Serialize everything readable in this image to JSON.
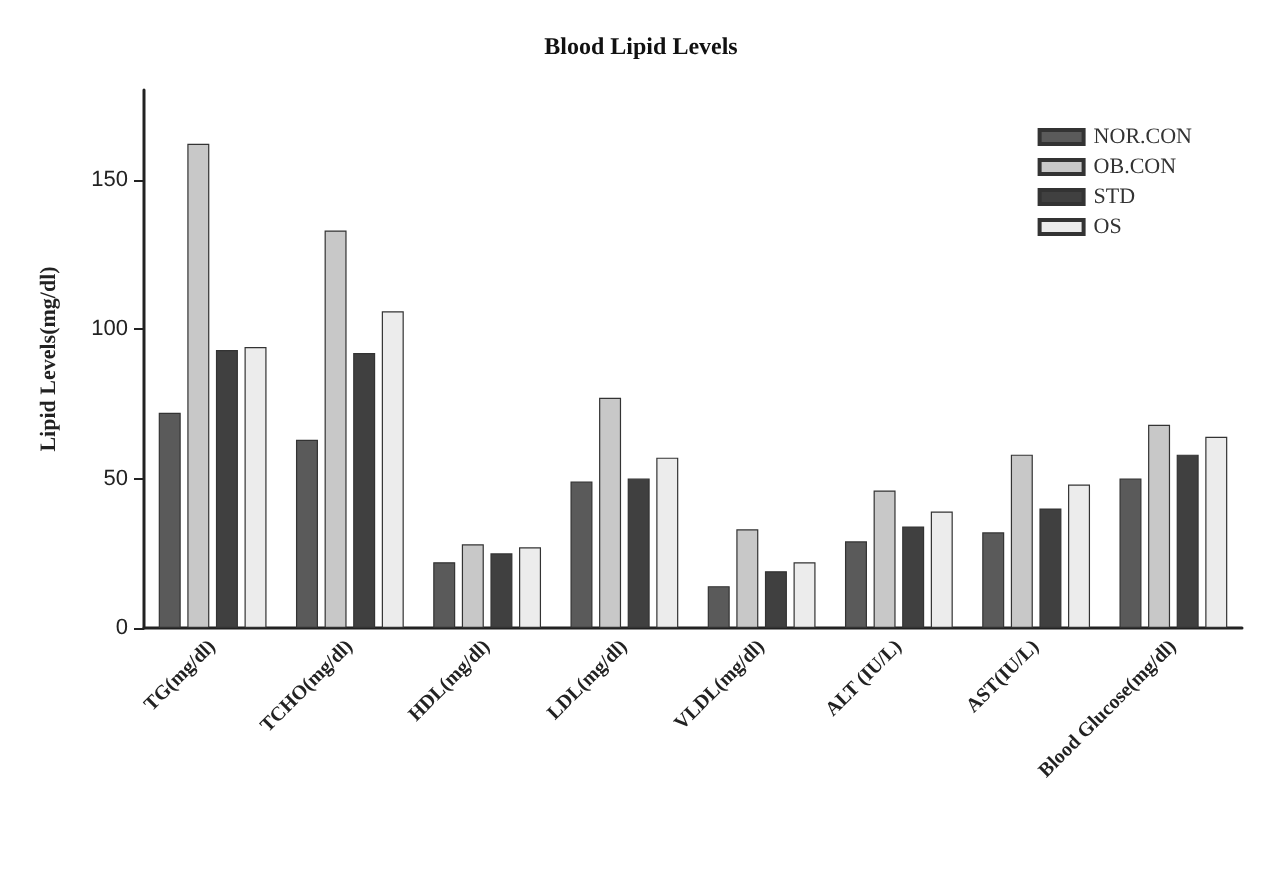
{
  "chart_data": {
    "type": "bar",
    "title": "Blood Lipid Levels",
    "ylabel": "Lipid Levels(mg/dl)",
    "categories": [
      "TG(mg/dl)",
      "TCHO(mg/dl)",
      "HDL(mg/dl)",
      "LDL(mg/dl)",
      "VLDL(mg/dl)",
      "ALT (IU/L)",
      "AST(IU/L)",
      "Blood Glucose(mg/dl)"
    ],
    "series": [
      {
        "name": "NOR.CON",
        "color": "#5a5a5a",
        "values": [
          72,
          63,
          22,
          49,
          14,
          29,
          32,
          50
        ]
      },
      {
        "name": "OB.CON",
        "color": "#c8c8c8",
        "values": [
          162,
          133,
          28,
          77,
          33,
          46,
          58,
          68
        ]
      },
      {
        "name": "STD",
        "color": "#404040",
        "values": [
          93,
          92,
          25,
          50,
          19,
          34,
          40,
          58
        ]
      },
      {
        "name": "OS",
        "color": "#ececec",
        "values": [
          94,
          106,
          27,
          57,
          22,
          39,
          48,
          64
        ]
      }
    ],
    "ylim": [
      0,
      180
    ],
    "yticks": [
      0,
      50,
      100,
      150
    ],
    "grid": false,
    "legend": "top right"
  }
}
